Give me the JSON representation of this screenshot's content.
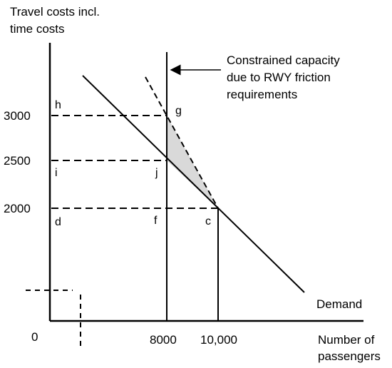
{
  "axes": {
    "y_title_line1": "Travel costs incl.",
    "y_title_line2": "time costs",
    "x_title_line1": "Number of",
    "x_title_line2": "passengers",
    "origin": "0"
  },
  "y_ticks": [
    "3000",
    "2500",
    "2000"
  ],
  "x_ticks": [
    "8000",
    "10,000"
  ],
  "points": {
    "h": "h",
    "g": "g",
    "i": "i",
    "j": "j",
    "d": "d",
    "f": "f",
    "c": "c"
  },
  "annotation": {
    "line1": "Constrained capacity",
    "line2": "due to RWY friction",
    "line3": "requirements"
  },
  "demand_label": "Demand",
  "colors": {
    "shade": "#d9d9d9",
    "line": "#000000"
  }
}
